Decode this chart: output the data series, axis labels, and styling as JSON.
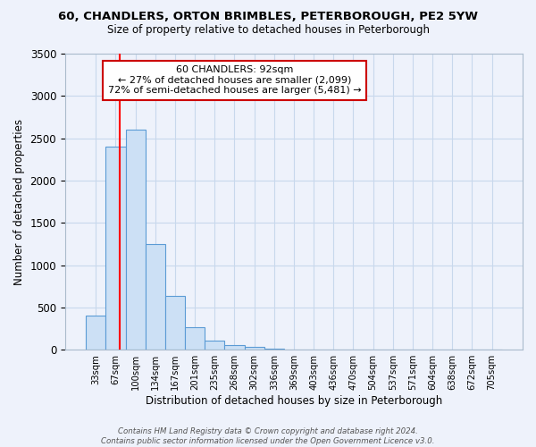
{
  "title": "60, CHANDLERS, ORTON BRIMBLES, PETERBOROUGH, PE2 5YW",
  "subtitle": "Size of property relative to detached houses in Peterborough",
  "xlabel": "Distribution of detached houses by size in Peterborough",
  "ylabel": "Number of detached properties",
  "bar_labels": [
    "33sqm",
    "67sqm",
    "100sqm",
    "134sqm",
    "167sqm",
    "201sqm",
    "235sqm",
    "268sqm",
    "302sqm",
    "336sqm",
    "369sqm",
    "403sqm",
    "436sqm",
    "470sqm",
    "504sqm",
    "537sqm",
    "571sqm",
    "604sqm",
    "638sqm",
    "672sqm",
    "705sqm"
  ],
  "bar_heights": [
    400,
    2400,
    2600,
    1250,
    640,
    265,
    110,
    60,
    35,
    15,
    5,
    2,
    0,
    0,
    0,
    0,
    0,
    0,
    0,
    0,
    0
  ],
  "bar_color": "#cce0f5",
  "bar_edge_color": "#5b9bd5",
  "red_line_x": 1.2,
  "ylim": [
    0,
    3500
  ],
  "annotation_title": "60 CHANDLERS: 92sqm",
  "annotation_line1": "← 27% of detached houses are smaller (2,099)",
  "annotation_line2": "72% of semi-detached houses are larger (5,481) →",
  "annotation_box_color": "#ffffff",
  "annotation_box_edge": "#cc0000",
  "footer_line1": "Contains HM Land Registry data © Crown copyright and database right 2024.",
  "footer_line2": "Contains public sector information licensed under the Open Government Licence v3.0.",
  "background_color": "#eef2fb",
  "plot_bg_color": "#eef2fb",
  "grid_color": "#c8d8ec"
}
